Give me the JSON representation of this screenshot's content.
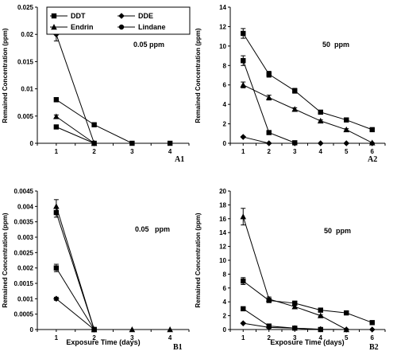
{
  "chart_data": [
    {
      "id": "A1",
      "type": "line",
      "panel_label": "A1",
      "concentration_label": "0.05 ppm",
      "ylabel": "Remained Concentration (ppm)",
      "xlabel": "",
      "x": [
        1,
        2,
        3,
        4
      ],
      "xlim": [
        0.5,
        4.5
      ],
      "ylim": [
        0,
        0.025
      ],
      "yticks": [
        0,
        0.005,
        0.01,
        0.015,
        0.02,
        0.025
      ],
      "ytick_labels": [
        "0",
        "0.005",
        "0.01",
        "0.015",
        "0.02",
        "0.025"
      ],
      "xtick_labels": [
        "1",
        "2",
        "3",
        "4"
      ],
      "legend": {
        "placement": "top-left",
        "entries": [
          {
            "name": "DDT",
            "marker": "square"
          },
          {
            "name": "DDE",
            "marker": "diamond"
          },
          {
            "name": "Endrin",
            "marker": "triangle"
          },
          {
            "name": "Lindane",
            "marker": "circle"
          }
        ]
      },
      "series": [
        {
          "marker": "diamond",
          "values": [
            0.02,
            0,
            null,
            null
          ],
          "errors": [
            0.0012,
            0,
            0,
            0
          ]
        },
        {
          "marker": "square",
          "values": [
            0.008,
            0.0034,
            0,
            0
          ],
          "errors": [
            0.0004,
            0.0002,
            0,
            0
          ]
        },
        {
          "marker": "triangle",
          "values": [
            0.0049,
            0,
            null,
            null
          ],
          "errors": [
            0.0003,
            0,
            0,
            0
          ]
        },
        {
          "marker": "square",
          "values": [
            0.003,
            0,
            null,
            null
          ],
          "errors": [
            0.0002,
            0,
            0,
            0
          ]
        }
      ]
    },
    {
      "id": "A2",
      "type": "line",
      "panel_label": "A2",
      "concentration_label": "50  ppm",
      "ylabel": "Remained Concentration (ppm)",
      "xlabel": "",
      "x": [
        1,
        2,
        3,
        4,
        5,
        6
      ],
      "xlim": [
        0.5,
        6.5
      ],
      "ylim": [
        0,
        14
      ],
      "yticks": [
        0,
        2,
        4,
        6,
        8,
        10,
        12,
        14
      ],
      "ytick_labels": [
        "0",
        "2",
        "4",
        "6",
        "8",
        "10",
        "12",
        "14"
      ],
      "xtick_labels": [
        "1",
        "2",
        "3",
        "4",
        "5",
        "6"
      ],
      "series": [
        {
          "marker": "square",
          "values": [
            11.3,
            7.1,
            5.4,
            3.2,
            2.4,
            1.4
          ],
          "errors": [
            0.5,
            0.3,
            0.25,
            0.15,
            0.1,
            0.1
          ]
        },
        {
          "marker": "triangle",
          "values": [
            6.0,
            4.7,
            3.5,
            2.3,
            1.4,
            0.05
          ],
          "errors": [
            0.3,
            0.25,
            0.15,
            0.1,
            0.1,
            0
          ]
        },
        {
          "marker": "square",
          "values": [
            8.5,
            1.1,
            0.05,
            null,
            null,
            null
          ],
          "errors": [
            0.5,
            0.1,
            0,
            0,
            0,
            0
          ]
        },
        {
          "marker": "diamond",
          "values": [
            0.65,
            0,
            0,
            0,
            0,
            0
          ],
          "errors": [
            0.05,
            0,
            0,
            0,
            0,
            0
          ]
        }
      ]
    },
    {
      "id": "B1",
      "type": "line",
      "panel_label": "B1",
      "concentration_label": "0.05   ppm",
      "ylabel": "Remained Concentration (ppm)",
      "xlabel": "Exposure Time (days)",
      "x": [
        1,
        2,
        3,
        4
      ],
      "xlim": [
        0.5,
        4.5
      ],
      "ylim": [
        0,
        0.0045
      ],
      "yticks": [
        0,
        0.0005,
        0.001,
        0.0015,
        0.002,
        0.0025,
        0.003,
        0.0035,
        0.004,
        0.0045
      ],
      "ytick_labels": [
        "0",
        "0.0005",
        "0.001",
        "0.0015",
        "0.002",
        "0.0025",
        "0.003",
        "0.0035",
        "0.004",
        "0.0045"
      ],
      "xtick_labels": [
        "1",
        "2",
        "3",
        "4"
      ],
      "series": [
        {
          "marker": "triangle",
          "values": [
            0.004,
            0,
            0,
            0
          ],
          "errors": [
            0.00022,
            0,
            0,
            0
          ]
        },
        {
          "marker": "square",
          "values": [
            0.0038,
            0,
            null,
            null
          ],
          "errors": [
            0.00015,
            0,
            0,
            0
          ]
        },
        {
          "marker": "square",
          "values": [
            0.002,
            0,
            null,
            null
          ],
          "errors": [
            0.00012,
            0,
            0,
            0
          ]
        },
        {
          "marker": "diamond",
          "values": [
            0.001,
            0,
            null,
            null
          ],
          "errors": [
            5e-05,
            0,
            0,
            0
          ]
        }
      ]
    },
    {
      "id": "B2",
      "type": "line",
      "panel_label": "B2",
      "concentration_label": "50  ppm",
      "ylabel": "Remained Concentration (ppm)",
      "xlabel": "Exposure Time (days)",
      "x": [
        1,
        2,
        3,
        4,
        5,
        6
      ],
      "xlim": [
        0.5,
        6.5
      ],
      "ylim": [
        0,
        20
      ],
      "yticks": [
        0,
        2,
        4,
        6,
        8,
        10,
        12,
        14,
        16,
        18,
        20
      ],
      "ytick_labels": [
        "0",
        "2",
        "4",
        "6",
        "8",
        "10",
        "12",
        "14",
        "16",
        "18",
        "20"
      ],
      "xtick_labels": [
        "1",
        "2",
        "3",
        "4",
        "5",
        "6"
      ],
      "series": [
        {
          "marker": "triangle",
          "values": [
            16.3,
            4.4,
            3.3,
            2.0,
            0,
            null
          ],
          "errors": [
            1.2,
            0.3,
            0.25,
            0.1,
            0,
            0
          ]
        },
        {
          "marker": "square",
          "values": [
            7.0,
            4.2,
            3.8,
            2.8,
            2.4,
            1.0
          ],
          "errors": [
            0.5,
            0.3,
            0.3,
            0.2,
            0.2,
            0.1
          ]
        },
        {
          "marker": "square",
          "values": [
            3.0,
            0.5,
            0.2,
            0,
            null,
            null
          ],
          "errors": [
            0.2,
            0.05,
            0,
            0,
            0,
            0
          ]
        },
        {
          "marker": "diamond",
          "values": [
            0.9,
            0.3,
            0.2,
            0.05,
            0,
            0
          ],
          "errors": [
            0.05,
            0,
            0,
            0,
            0,
            0
          ]
        }
      ]
    }
  ]
}
